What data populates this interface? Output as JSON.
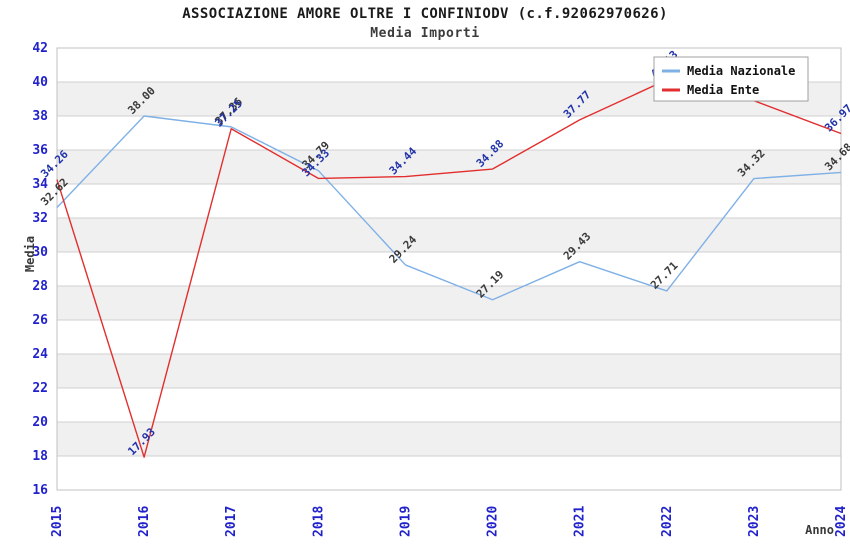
{
  "header": {
    "title": "ASSOCIAZIONE AMORE OLTRE I CONFINIODV (c.f.92062970626)",
    "subtitle": "Media Importi"
  },
  "chart_data": {
    "type": "line",
    "title": "ASSOCIAZIONE AMORE OLTRE I CONFINIODV (c.f.92062970626)",
    "subtitle": "Media Importi",
    "xlabel": "Anno",
    "ylabel": "Media",
    "x": [
      "2015",
      "2016",
      "2017",
      "2018",
      "2019",
      "2020",
      "2021",
      "2022",
      "2023",
      "2024"
    ],
    "ylim": [
      16,
      42
    ],
    "ytick_step": 2,
    "yticks": [
      16,
      18,
      20,
      22,
      24,
      26,
      28,
      30,
      32,
      34,
      36,
      38,
      40,
      42
    ],
    "grid": {
      "horizontal_lines": true,
      "alternating_bands": true,
      "band_color": "#f0f0f0",
      "line_color": "#d0d0d0",
      "border_color": "#c0c0c0"
    },
    "axis": {
      "tick_label_color": "#2222cc",
      "axis_title_color": "#3a3a3a"
    },
    "legend": {
      "position": "top-right",
      "background": "#ffffff",
      "border_color": "#a0a0a0"
    },
    "series": [
      {
        "name": "Media Nazionale",
        "line_color": "#7fb0e6",
        "label_color": "#3a3a3a",
        "values": [
          32.62,
          38.0,
          37.36,
          34.79,
          29.24,
          27.19,
          29.43,
          27.71,
          34.32,
          34.68
        ],
        "point_labels": [
          "32.62",
          "38.00",
          "37.36",
          "34.79",
          "29.24",
          "27.19",
          "29.43",
          "27.71",
          "34.32",
          "34.68"
        ]
      },
      {
        "name": "Media Ente",
        "line_color": "#e22e2e",
        "label_color": "#2233aa",
        "values": [
          34.26,
          17.93,
          37.25,
          34.33,
          34.44,
          34.88,
          37.77,
          40.13,
          38.9,
          36.97
        ],
        "point_labels": [
          "34.26",
          "17.93",
          "37.25",
          "34.33",
          "34.44",
          "34.88",
          "37.77",
          "40.13",
          "",
          "36.97"
        ]
      }
    ]
  }
}
